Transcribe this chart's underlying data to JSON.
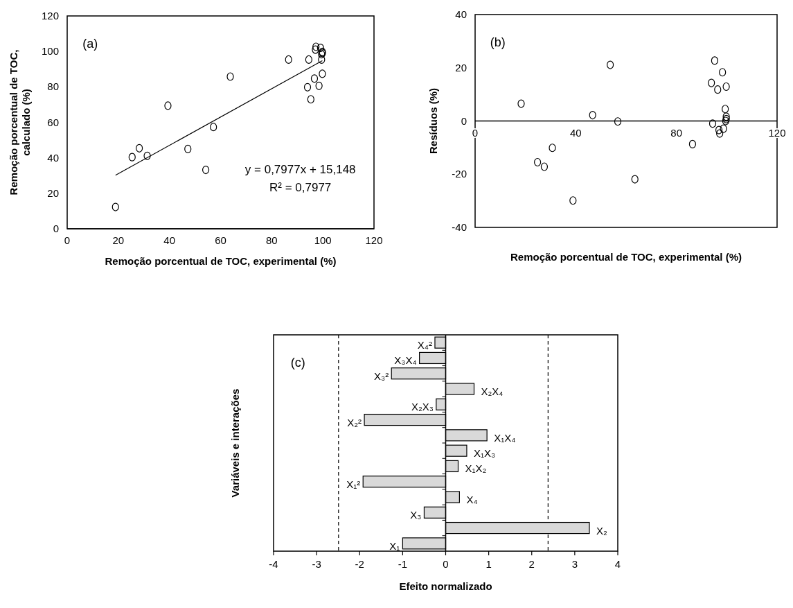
{
  "chart_data": [
    {
      "type": "scatter",
      "xlabel": "Remoção porcentual de TOC, experimental (%)",
      "ylabel": "Remoção porcentual de TOC, calculado (%)",
      "annotations": [
        "(a)",
        "y = 0,7977x + 15,148",
        "R² = 0,7977"
      ],
      "xlim": [
        0,
        120
      ],
      "xticks": [
        0,
        20,
        40,
        60,
        80,
        100,
        120
      ],
      "ylim": [
        0,
        120
      ],
      "yticks": [
        0,
        20,
        40,
        60,
        80,
        100,
        120
      ],
      "marker": "circle",
      "grid": false,
      "series": [
        {
          "type": "scatter",
          "color": "#000000",
          "x": [
            18.9,
            25.4,
            28.2,
            31.3,
            39.4,
            47.2,
            54.2,
            57.2,
            63.8,
            86.6,
            94.5,
            94.0,
            95.3,
            96.7,
            98.5,
            99.8,
            99.5,
            99.8,
            99.8,
            97.3,
            97.1,
            99.1,
            99.5
          ],
          "values": [
            12.3,
            40.4,
            45.4,
            41.1,
            69.4,
            45.0,
            33.2,
            57.4,
            85.8,
            95.4,
            95.4,
            79.8,
            73.0,
            84.7,
            80.6,
            87.4,
            95.4,
            99.1,
            99.7,
            102.6,
            101.0,
            102.0,
            98.4
          ]
        },
        {
          "type": "line",
          "color": "#000000",
          "marker": "none",
          "x": [
            18.9,
            99.8
          ],
          "values": [
            30.2,
            94.8
          ]
        }
      ]
    },
    {
      "type": "scatter",
      "xlabel": "Remoção porcentual de TOC, experimental (%)",
      "ylabel": "Resíduos (%)",
      "annotations": [
        "(b)"
      ],
      "xlim": [
        0,
        120
      ],
      "xticks": [
        0,
        40,
        80,
        120
      ],
      "ylim": [
        -40,
        40
      ],
      "yticks": [
        -40,
        -20,
        0,
        20,
        40
      ],
      "marker": "circle",
      "grid": false,
      "series": [
        {
          "type": "scatter",
          "color": "#000000",
          "x": [
            18.3,
            24.8,
            27.5,
            30.7,
            38.9,
            46.7,
            53.7,
            56.7,
            63.5,
            86.4,
            93.9,
            94.4,
            95.2,
            96.4,
            96.9,
            97.2,
            98.3,
            98.7,
            99.8,
            99.4,
            99.8,
            99.8,
            99.6
          ],
          "values": [
            6.5,
            -15.5,
            -17.2,
            -10.1,
            -29.9,
            2.2,
            21.1,
            -0.2,
            -21.9,
            -8.7,
            14.3,
            -1.0,
            22.7,
            11.8,
            -3.4,
            -4.7,
            18.3,
            -2.9,
            12.9,
            4.5,
            1.6,
            0.7,
            0.0
          ]
        }
      ]
    },
    {
      "type": "bar",
      "orientation": "horizontal",
      "xlabel": "Efeito normalizado",
      "ylabel": "Variáveis e interações",
      "annotations": [
        "(c)"
      ],
      "xlim": [
        -4,
        4
      ],
      "xticks": [
        -4,
        -3,
        -2,
        -1,
        0,
        1,
        2,
        3,
        4
      ],
      "grid": false,
      "categories": [
        "X₄²",
        "X₃X₄",
        "X₃²",
        "X₂X₄",
        "X₂X₃",
        "X₂²",
        "X₁X₄",
        "X₁X₃",
        "X₁X₂",
        "X₁²",
        "X₄",
        "X₃",
        "X₂",
        "X₁"
      ],
      "values": [
        -0.25,
        -0.61,
        -1.26,
        0.66,
        -0.22,
        -1.89,
        0.96,
        0.49,
        0.29,
        -1.92,
        0.32,
        -0.5,
        3.34,
        -1.0
      ],
      "color": "#d9d9d9",
      "ref_lines": [
        {
          "axis": "x",
          "value": -2.49,
          "line_style": "dashed"
        },
        {
          "axis": "x",
          "value": 2.38,
          "line_style": "dashed"
        }
      ]
    }
  ]
}
